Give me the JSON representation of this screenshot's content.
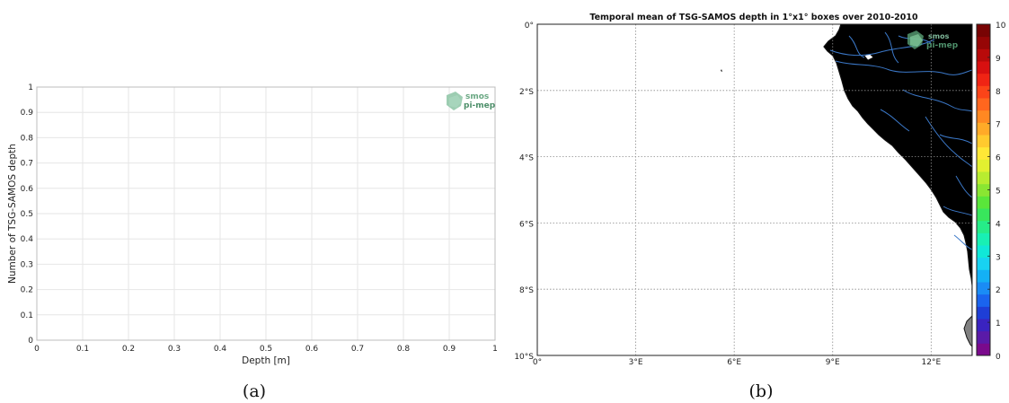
{
  "chart_data": [
    {
      "type": "scatter",
      "panel": "(a)",
      "xlabel": "Depth [m]",
      "ylabel": "Number of TSG-SAMOS depth",
      "xlim": [
        0,
        1
      ],
      "ylim": [
        0,
        1
      ],
      "xticks": [
        "0",
        "0.1",
        "0.2",
        "0.3",
        "0.4",
        "0.5",
        "0.6",
        "0.7",
        "0.8",
        "0.9",
        "1"
      ],
      "yticks": [
        "0",
        "0.1",
        "0.2",
        "0.3",
        "0.4",
        "0.5",
        "0.6",
        "0.7",
        "0.8",
        "0.9",
        "1"
      ],
      "grid": true,
      "series": []
    },
    {
      "type": "heatmap",
      "panel": "(b)",
      "title": "Temporal mean of TSG-SAMOS depth in 1°x1° boxes over 2010-2010",
      "xticks": [
        "0°",
        "3°E",
        "6°E",
        "9°E",
        "12°E"
      ],
      "yticks": [
        "0°",
        "2°S",
        "4°S",
        "6°S",
        "8°S",
        "10°S"
      ],
      "grid": true,
      "colorbar": {
        "min": 0,
        "max": 10,
        "ticks": [
          "0",
          "1",
          "2",
          "3",
          "4",
          "5",
          "6",
          "7",
          "8",
          "9",
          "10"
        ],
        "colors": [
          "#7a0a8c",
          "#5a1aa8",
          "#3a23c0",
          "#1e3ed6",
          "#1a64ee",
          "#1a8cf5",
          "#14b0f5",
          "#18d2f2",
          "#10e8d8",
          "#18f0b4",
          "#26ec88",
          "#38e65c",
          "#5ae63a",
          "#8ae632",
          "#b8ec30",
          "#e2f030",
          "#ffe836",
          "#ffca2e",
          "#ffaa28",
          "#ff8822",
          "#ff661e",
          "#fc4418",
          "#f02414",
          "#d81010",
          "#b80a0a",
          "#960606",
          "#780404"
        ]
      },
      "values": []
    }
  ],
  "logo": {
    "line1": "smos",
    "line2": "pi-mep"
  },
  "captions": {
    "a": "(a)",
    "b": "(b)"
  },
  "map_colors": {
    "land": "#808080",
    "coast": "#111111",
    "rivers": "#3b78c8"
  }
}
